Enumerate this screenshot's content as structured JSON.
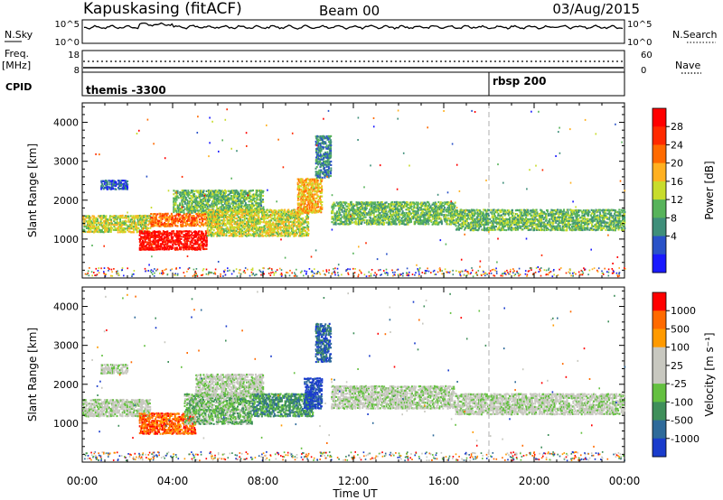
{
  "header": {
    "station": "Kapuskasing (fitACF)",
    "beam": "Beam 00",
    "date": "03/Aug/2015"
  },
  "strips": {
    "nsky_label": "N.Sky",
    "nsky_ticks": [
      "10^5",
      "10^0"
    ],
    "nsearch_label": "N.Search",
    "nsearch_ticks": [
      "10^5",
      "10^0"
    ],
    "freq_label": "Freq.",
    "freq_unit": "[MHz]",
    "freq_ticks": [
      "18",
      "8"
    ],
    "nave_label": "Nave",
    "nave_ticks": [
      "60",
      "0"
    ],
    "cpid_label": "CPID",
    "cpid_segments": [
      {
        "label": "themis -3300",
        "start_hour": 0
      },
      {
        "label": "rbsp 200",
        "start_hour": 18
      }
    ]
  },
  "chart_data": [
    {
      "type": "heatmap",
      "name": "power",
      "ylabel": "Slant Range [km]",
      "xlabel": "",
      "xlim": [
        0,
        24
      ],
      "ylim": [
        0,
        4500
      ],
      "yticks": [
        1000,
        2000,
        3000,
        4000
      ],
      "colorbar_label": "Power [dB]",
      "colorbar_ticks": [
        "4",
        "8",
        "12",
        "16",
        "20",
        "24",
        "28"
      ],
      "colorbar_colors": [
        "#1a1aff",
        "#2a52c8",
        "#3f8f7a",
        "#57b35a",
        "#c8dc2c",
        "#ffb020",
        "#ff6a00",
        "#ff2a00",
        "#ff0000"
      ],
      "echo_bands": [
        {
          "t0": 0.0,
          "t1": 3.0,
          "r0": 1200,
          "r1": 1650,
          "level": 4
        },
        {
          "t0": 0.8,
          "t1": 2.0,
          "r0": 2300,
          "r1": 2550,
          "level": 1
        },
        {
          "t0": 2.5,
          "t1": 5.5,
          "r0": 750,
          "r1": 1250,
          "level": 8
        },
        {
          "t0": 3.0,
          "t1": 6.0,
          "r0": 1350,
          "r1": 1700,
          "level": 6
        },
        {
          "t0": 4.0,
          "t1": 8.0,
          "r0": 1700,
          "r1": 2300,
          "level": 3
        },
        {
          "t0": 5.5,
          "t1": 10.0,
          "r0": 1100,
          "r1": 1800,
          "level": 4
        },
        {
          "t0": 9.5,
          "t1": 10.6,
          "r0": 1700,
          "r1": 2600,
          "level": 5
        },
        {
          "t0": 10.3,
          "t1": 11.0,
          "r0": 2600,
          "r1": 3700,
          "level": 2
        },
        {
          "t0": 11.0,
          "t1": 16.5,
          "r0": 1400,
          "r1": 2000,
          "level": 3
        },
        {
          "t0": 16.5,
          "t1": 24.0,
          "r0": 1250,
          "r1": 1800,
          "level": 3
        }
      ]
    },
    {
      "type": "heatmap",
      "name": "velocity",
      "ylabel": "Slant Range [km]",
      "xlabel": "Time UT",
      "xlim": [
        0,
        24
      ],
      "ylim": [
        0,
        4500
      ],
      "yticks": [
        1000,
        2000,
        3000,
        4000
      ],
      "xticks": [
        "00:00",
        "04:00",
        "08:00",
        "12:00",
        "16:00",
        "20:00",
        "00:00"
      ],
      "colorbar_label": "Velocity [m s⁻¹]",
      "colorbar_ticks": [
        "1000",
        "500",
        "100",
        "25",
        "-25",
        "-100",
        "-500",
        "-1000"
      ],
      "colorbar_colors": [
        "#1a3ccc",
        "#2e6a9a",
        "#3f8f5a",
        "#64c040",
        "#c8c8c0",
        "#c8c8c0",
        "#ff9a00",
        "#ff6a00",
        "#ff0000"
      ],
      "echo_bands": [
        {
          "t0": 0.0,
          "t1": 3.0,
          "r0": 1200,
          "r1": 1650,
          "level": 4
        },
        {
          "t0": 0.8,
          "t1": 2.0,
          "r0": 2300,
          "r1": 2550,
          "level": 4
        },
        {
          "t0": 2.5,
          "t1": 5.0,
          "r0": 750,
          "r1": 1300,
          "level": 7
        },
        {
          "t0": 4.5,
          "t1": 7.5,
          "r0": 1000,
          "r1": 1800,
          "level": 3
        },
        {
          "t0": 5.0,
          "t1": 8.0,
          "r0": 1700,
          "r1": 2300,
          "level": 4
        },
        {
          "t0": 7.5,
          "t1": 10.2,
          "r0": 1200,
          "r1": 1800,
          "level": 2
        },
        {
          "t0": 9.8,
          "t1": 10.6,
          "r0": 1400,
          "r1": 2200,
          "level": 0
        },
        {
          "t0": 10.3,
          "t1": 11.0,
          "r0": 2600,
          "r1": 3600,
          "level": 1
        },
        {
          "t0": 11.0,
          "t1": 16.5,
          "r0": 1400,
          "r1": 2000,
          "level": 4
        },
        {
          "t0": 16.5,
          "t1": 24.0,
          "r0": 1250,
          "r1": 1800,
          "level": 4
        }
      ]
    }
  ]
}
